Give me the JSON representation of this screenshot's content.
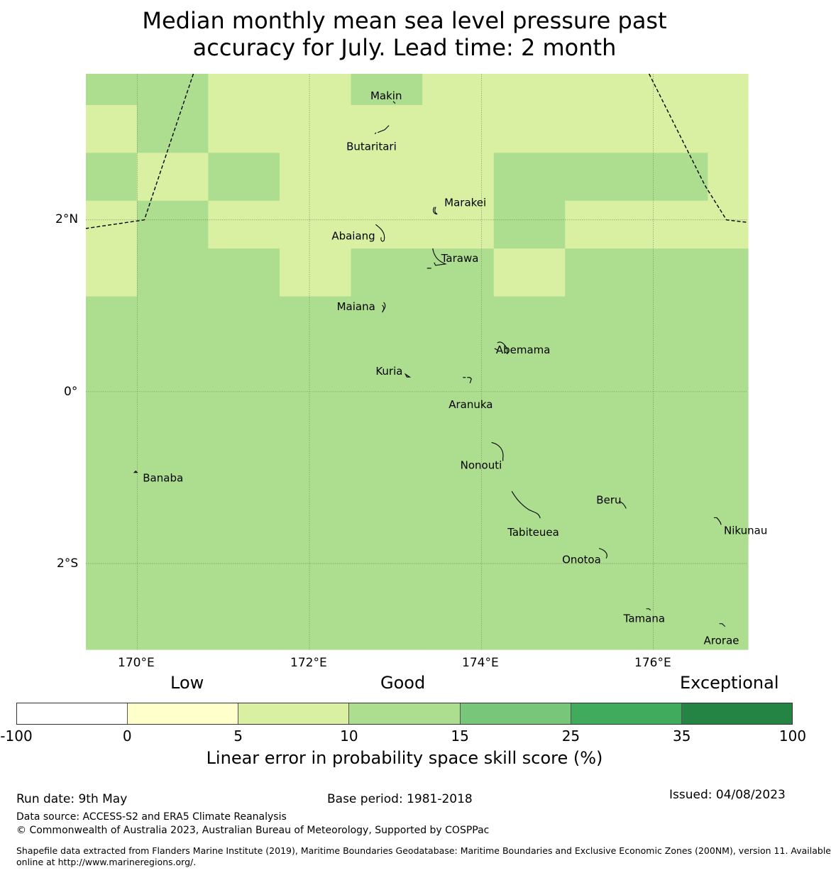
{
  "title_line1": "Median monthly mean sea level pressure past",
  "title_line2": "accuracy for July. Lead time: 2 month",
  "map": {
    "lon_range": [
      169.4,
      177.1
    ],
    "lat_range": [
      -3.0,
      3.7
    ],
    "x_ticks": [
      "170°E",
      "172°E",
      "174°E",
      "176°E"
    ],
    "y_ticks": [
      "2°N",
      "0°",
      "2°S"
    ],
    "grid_lines_lon": [
      170,
      172,
      174,
      176
    ],
    "grid_lines_lat": [
      2,
      0,
      -2
    ],
    "cell_edges_lon": [
      169.4,
      169.993,
      170.823,
      171.653,
      172.483,
      173.313,
      174.143,
      174.973,
      175.803,
      176.633,
      177.1
    ],
    "cell_edges_lat": [
      3.7,
      3.337,
      2.78,
      2.223,
      1.666,
      1.109,
      0.552,
      0.0,
      -0.557,
      -1.114,
      -1.671,
      -2.228,
      -2.785,
      -3.0
    ],
    "cell_classes": [
      [
        3,
        3,
        2,
        2,
        3,
        2,
        2,
        2,
        2,
        2
      ],
      [
        2,
        3,
        2,
        2,
        2,
        2,
        2,
        2,
        2,
        2
      ],
      [
        3,
        2,
        3,
        2,
        2,
        2,
        3,
        3,
        3,
        2
      ],
      [
        2,
        3,
        2,
        2,
        2,
        2,
        3,
        2,
        2,
        2
      ],
      [
        2,
        3,
        3,
        2,
        3,
        3,
        2,
        3,
        3,
        3
      ],
      [
        3,
        3,
        3,
        3,
        3,
        3,
        3,
        3,
        3,
        3
      ],
      [
        3,
        3,
        3,
        3,
        3,
        3,
        3,
        3,
        3,
        3
      ],
      [
        3,
        3,
        3,
        3,
        3,
        3,
        3,
        3,
        3,
        3
      ],
      [
        3,
        3,
        3,
        3,
        3,
        3,
        3,
        3,
        3,
        3
      ],
      [
        3,
        3,
        3,
        3,
        3,
        3,
        3,
        3,
        3,
        3
      ],
      [
        3,
        3,
        3,
        3,
        3,
        3,
        3,
        3,
        3,
        3
      ],
      [
        3,
        3,
        3,
        3,
        3,
        3,
        3,
        3,
        3,
        3
      ],
      [
        3,
        3,
        3,
        3,
        3,
        3,
        3,
        3,
        3,
        3
      ]
    ],
    "islands": [
      {
        "name": "Makin",
        "lon": 172.99,
        "lat": 3.33
      },
      {
        "name": "Butaritari",
        "lon": 172.76,
        "lat": 3.0
      },
      {
        "name": "Marakei",
        "lon": 173.47,
        "lat": 2.1
      },
      {
        "name": "Abaiang",
        "lon": 172.77,
        "lat": 1.83
      },
      {
        "name": "Tarawa",
        "lon": 173.45,
        "lat": 1.47
      },
      {
        "name": "Maiana",
        "lon": 172.83,
        "lat": 0.99
      },
      {
        "name": "Abemama",
        "lon": 174.4,
        "lat": 0.42
      },
      {
        "name": "Kuria",
        "lon": 173.1,
        "lat": 0.22
      },
      {
        "name": "Aranuka",
        "lon": 173.9,
        "lat": 0.05
      },
      {
        "name": "Nonouti",
        "lon": 174.25,
        "lat": -0.74
      },
      {
        "name": "Banaba",
        "lon": 169.98,
        "lat": -0.94
      },
      {
        "name": "Beru",
        "lon": 175.65,
        "lat": -1.31
      },
      {
        "name": "Tabiteuea",
        "lon": 174.7,
        "lat": -1.44
      },
      {
        "name": "Nikunau",
        "lon": 176.77,
        "lat": -1.5
      },
      {
        "name": "Onotoa",
        "lon": 175.45,
        "lat": -1.89
      },
      {
        "name": "Tamana",
        "lon": 175.95,
        "lat": -2.56
      },
      {
        "name": "Arorae",
        "lon": 176.8,
        "lat": -2.75
      }
    ],
    "eez_boundary_west": [
      [
        170.65,
        3.7
      ],
      [
        170.08,
        2.0
      ],
      [
        169.4,
        1.9
      ]
    ],
    "eez_boundary_east": [
      [
        175.95,
        3.7
      ],
      [
        176.6,
        2.4
      ],
      [
        176.85,
        2.0
      ],
      [
        177.1,
        1.97
      ]
    ]
  },
  "categories": {
    "low": "Low",
    "good": "Good",
    "exceptional": "Exceptional"
  },
  "colorbar": {
    "colors": [
      "#ffffff",
      "#ffffcc",
      "#d9f0a3",
      "#addd8e",
      "#78c679",
      "#41ab5d",
      "#238443"
    ],
    "labels": [
      "-100",
      "0",
      "5",
      "10",
      "15",
      "25",
      "35",
      "100"
    ],
    "title": "Linear error in probability space skill score (%)"
  },
  "footer": {
    "run_date": "Run date: 9th May",
    "base_period": "Base period: 1981-2018",
    "issued": "Issued: 04/08/2023",
    "data_source": "Data source: ACCESS-S2 and ERA5 Climate Reanalysis",
    "copyright": "© Commonwealth of Australia 2023, Australian Bureau of Meteorology, Supported by COSPPac",
    "shapefile_line1": "Shapefile data extracted from Flanders Marine Institute (2019), Maritime Boundaries Geodatabase: Maritime Boundaries and Exclusive Economic Zones (200NM), version 11. Available",
    "shapefile_line2": "online at http://www.marineregions.org/."
  }
}
